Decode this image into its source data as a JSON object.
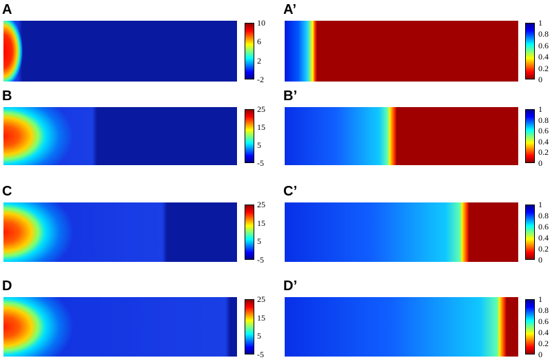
{
  "panels": [
    {
      "label": "A",
      "type": "temp",
      "front": 0.06,
      "colorbar": {
        "min": -2,
        "max": 10,
        "ticks": [
          "10",
          "6",
          "2",
          "-2"
        ]
      }
    },
    {
      "label": "A’",
      "type": "frac",
      "front": 0.13,
      "colorbar": {
        "min": 0,
        "max": 1,
        "ticks": [
          "1",
          "0.8",
          "0.6",
          "0.4",
          "0.2",
          "0"
        ]
      }
    },
    {
      "label": "B",
      "type": "temp",
      "front": 0.4,
      "colorbar": {
        "min": -5,
        "max": 25,
        "ticks": [
          "25",
          "15",
          "5",
          "-5"
        ]
      }
    },
    {
      "label": "B’",
      "type": "frac",
      "front": 0.47,
      "colorbar": {
        "min": 0,
        "max": 1,
        "ticks": [
          "1",
          "0.8",
          "0.6",
          "0.4",
          "0.2",
          "0"
        ]
      }
    },
    {
      "label": "C",
      "type": "temp",
      "front": 0.7,
      "colorbar": {
        "min": -5,
        "max": 25,
        "ticks": [
          "25",
          "15",
          "5",
          "-5"
        ]
      }
    },
    {
      "label": "C’",
      "type": "frac",
      "front": 0.78,
      "colorbar": {
        "min": 0,
        "max": 1,
        "ticks": [
          "1",
          "0.8",
          "0.6",
          "0.4",
          "0.2",
          "0"
        ]
      }
    },
    {
      "label": "D",
      "type": "temp",
      "front": 0.97,
      "colorbar": {
        "min": -5,
        "max": 25,
        "ticks": [
          "25",
          "15",
          "5",
          "-5"
        ]
      }
    },
    {
      "label": "D’",
      "type": "frac",
      "front": 0.94,
      "colorbar": {
        "min": 0,
        "max": 1,
        "ticks": [
          "1",
          "0.8",
          "0.6",
          "0.4",
          "0.2",
          "0"
        ]
      }
    }
  ],
  "colors": {
    "jet_dark_blue": "#00008f",
    "jet_blue": "#0000ff",
    "jet_cyan": "#00ffff",
    "jet_yellow": "#ffff00",
    "jet_red": "#ff0000",
    "jet_dark_red": "#8f0000"
  }
}
